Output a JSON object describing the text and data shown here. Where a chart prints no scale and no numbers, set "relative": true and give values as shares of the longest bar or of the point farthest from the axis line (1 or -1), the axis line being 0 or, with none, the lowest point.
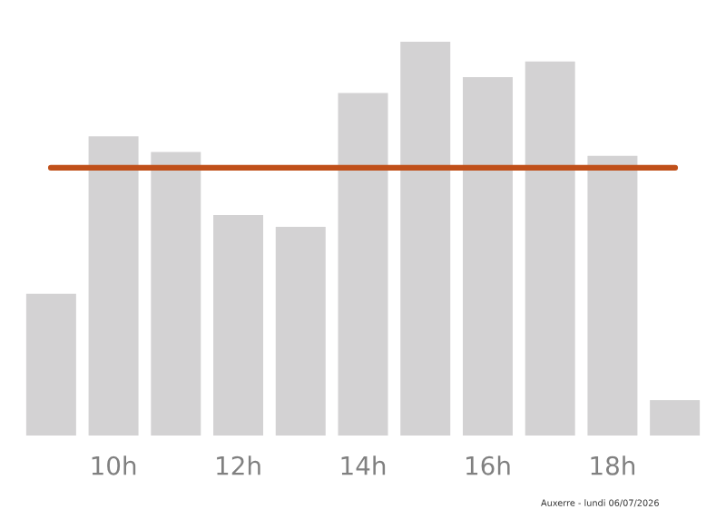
{
  "chart_data": {
    "type": "bar",
    "relative": true,
    "categories": [
      null,
      "10h",
      null,
      "12h",
      null,
      "14h",
      null,
      "16h",
      null,
      "18h",
      null
    ],
    "values": [
      0.36,
      0.76,
      0.72,
      0.56,
      0.53,
      0.87,
      1,
      0.91,
      0.95,
      0.71,
      0.09
    ],
    "color": "#d3d2d3",
    "ref_lines": [
      {
        "axis": "y",
        "value": 0.68,
        "color": "#c0501a",
        "line_style": "solid"
      }
    ],
    "annotations": [
      "Auxerre - lundi 06/07/2026"
    ],
    "grid": false,
    "legend": false
  }
}
